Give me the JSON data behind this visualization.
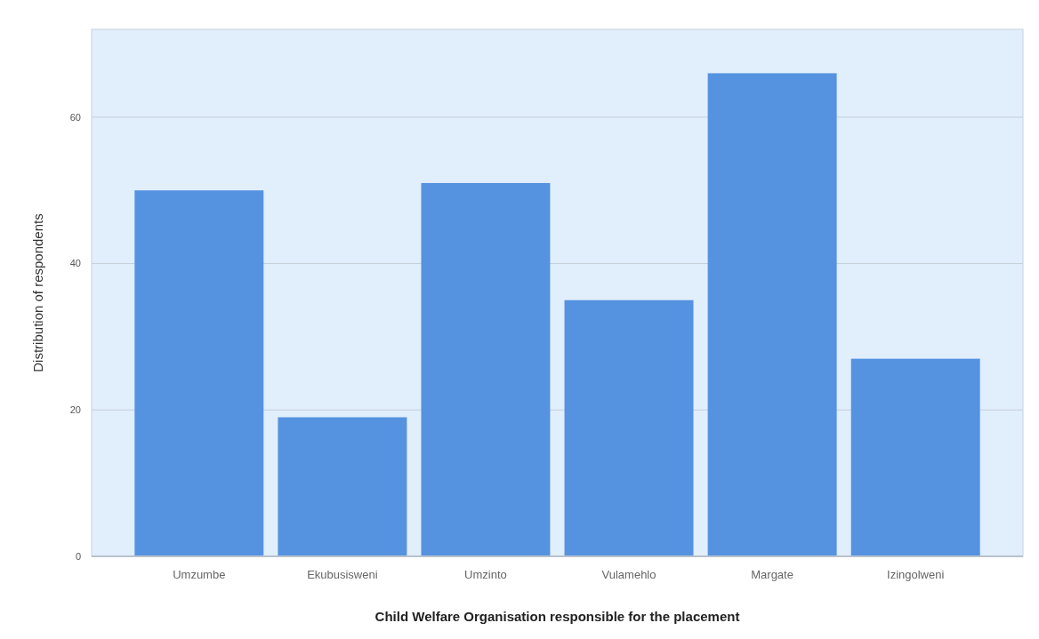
{
  "chart_data": {
    "type": "bar",
    "xlabel": "Child Welfare Organisation responsible for the placement",
    "ylabel": "Distribution of respondents",
    "categories": [
      "Umzumbe",
      "Ekubusisweni",
      "Umzinto",
      "Vulamehlo",
      "Margate",
      "Izingolweni"
    ],
    "values": [
      50,
      19,
      51,
      35,
      66,
      27
    ],
    "color": "#5592e0",
    "ylim": [
      0,
      72
    ],
    "yticks": [
      0,
      20,
      40,
      60
    ],
    "grid": "y"
  }
}
